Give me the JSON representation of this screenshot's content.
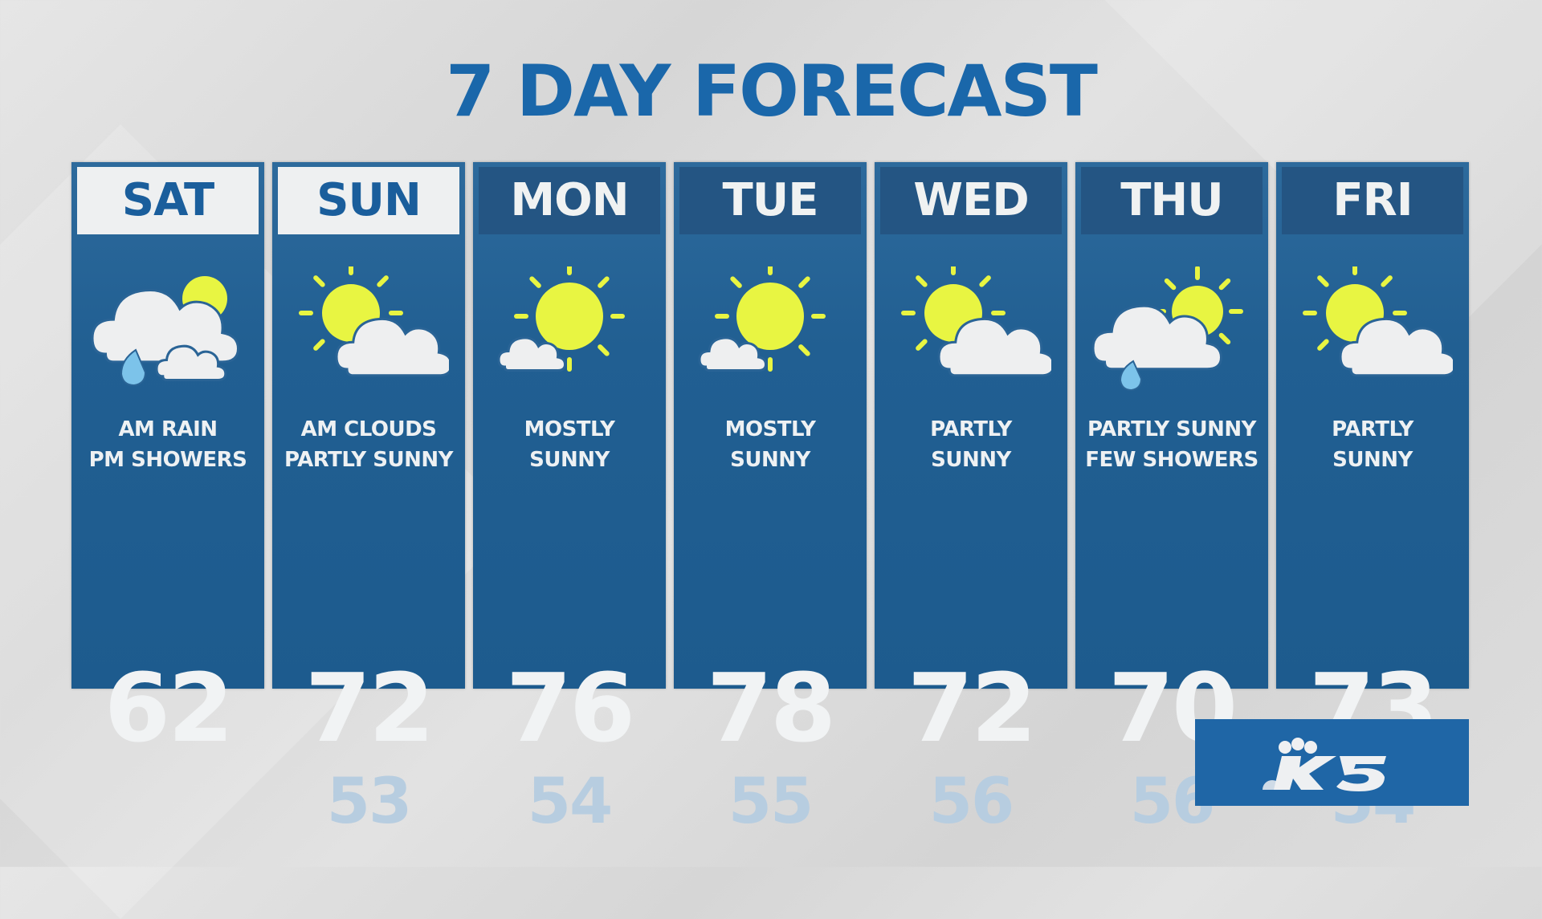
{
  "title": "7 DAY FORECAST",
  "colors": {
    "title": "#1a67aa",
    "column": "#215f92",
    "sun": "#e8f542",
    "rain": "#7cc3ea",
    "cloud": "#eeeff0"
  },
  "days": [
    {
      "day": "SAT",
      "highlight": true,
      "icon": "cloud-sun-rain-showers",
      "line1": "AM RAIN",
      "line2": "PM SHOWERS",
      "high": "62",
      "low": ""
    },
    {
      "day": "SUN",
      "highlight": true,
      "icon": "partly-sunny",
      "line1": "AM CLOUDS",
      "line2": "PARTLY SUNNY",
      "high": "72",
      "low": "53"
    },
    {
      "day": "MON",
      "highlight": false,
      "icon": "mostly-sunny",
      "line1": "MOSTLY",
      "line2": "SUNNY",
      "high": "76",
      "low": "54"
    },
    {
      "day": "TUE",
      "highlight": false,
      "icon": "mostly-sunny",
      "line1": "MOSTLY",
      "line2": "SUNNY",
      "high": "78",
      "low": "55"
    },
    {
      "day": "WED",
      "highlight": false,
      "icon": "partly-sunny",
      "line1": "PARTLY",
      "line2": "SUNNY",
      "high": "72",
      "low": "56"
    },
    {
      "day": "THU",
      "highlight": false,
      "icon": "partly-sunny-showers",
      "line1": "PARTLY SUNNY",
      "line2": "FEW SHOWERS",
      "high": "70",
      "low": "56"
    },
    {
      "day": "FRI",
      "highlight": false,
      "icon": "partly-sunny",
      "line1": "PARTLY",
      "line2": "SUNNY",
      "high": "73",
      "low": "54"
    }
  ],
  "logo": {
    "text": "K5",
    "icon": "nbc-peacock-icon"
  }
}
